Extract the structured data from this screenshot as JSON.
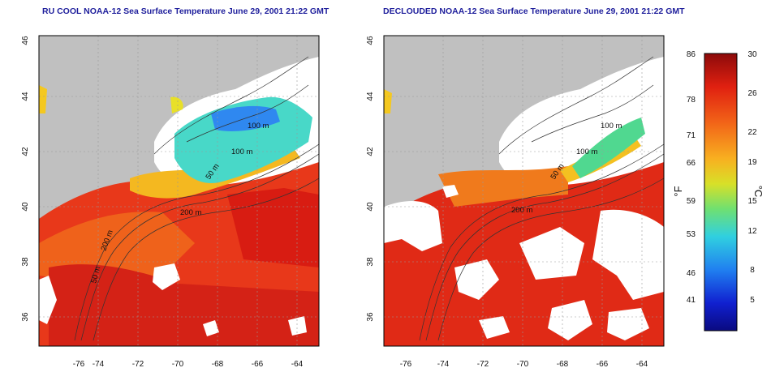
{
  "panels": [
    {
      "title": "RU COOL NOAA-12 Sea Surface Temperature June 29, 2001 21:22 GMT",
      "contour_labels": [
        "100 m",
        "50 m",
        "100 m",
        "200 m",
        "200 m",
        "50 m"
      ]
    },
    {
      "title": "DECLOUDED NOAA-12 Sea Surface Temperature June 29, 2001 21:22 GMT",
      "contour_labels": [
        "100 m",
        "50 m",
        "100 m",
        "200 m"
      ]
    }
  ],
  "map_axes": {
    "lon_ticks": [
      "-76",
      "-74",
      "-72",
      "-70",
      "-68",
      "-66",
      "-64"
    ],
    "lat_ticks": [
      "36",
      "38",
      "40",
      "42",
      "44",
      "46"
    ]
  },
  "colorbar": {
    "fahrenheit_ticks": [
      "86",
      "78",
      "71",
      "66",
      "59",
      "53",
      "46",
      "41"
    ],
    "celsius_ticks": [
      "30",
      "26",
      "22",
      "19",
      "15",
      "12",
      "8",
      "5"
    ],
    "fahrenheit_label": "°F",
    "celsius_label": "°C"
  },
  "colors": {
    "land": "#c0c0c0",
    "warm": "#e02810",
    "hot": "#c41818",
    "orange": "#f07a18",
    "yellow": "#f4c820",
    "cyan": "#48d8d0",
    "blue": "#2050e0",
    "title": "#1e1e9c"
  }
}
